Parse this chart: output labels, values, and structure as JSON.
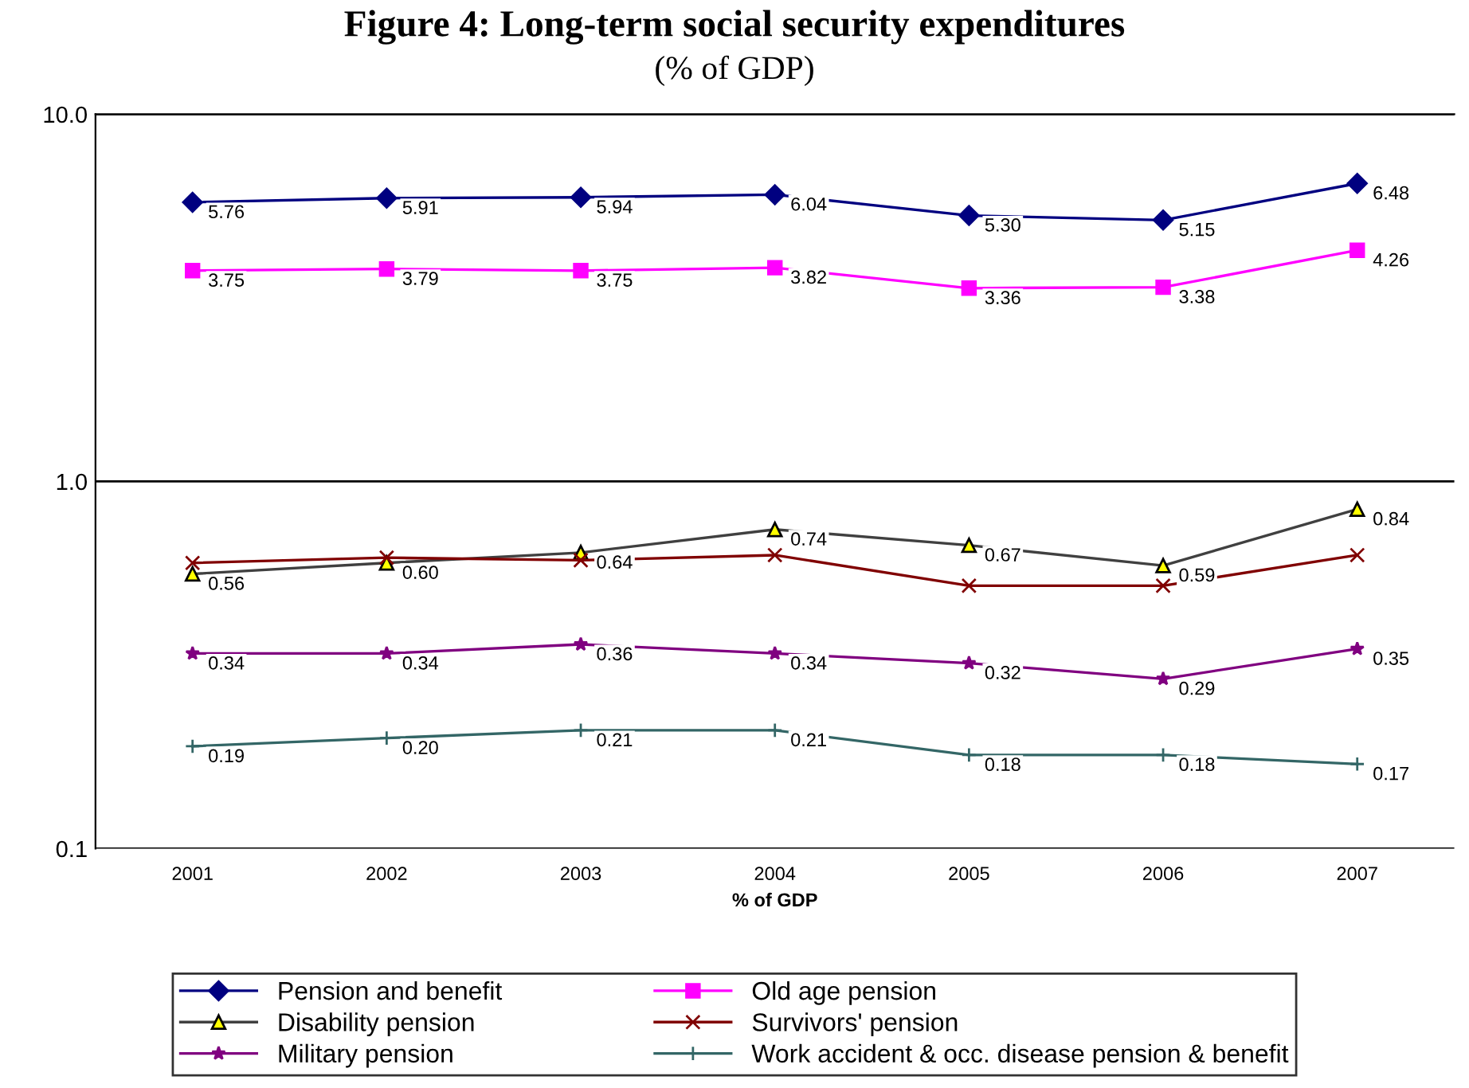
{
  "chart_data": {
    "type": "line",
    "title": "Figure 4: Long-term social security expenditures",
    "subtitle": "(% of GDP)",
    "xlabel": "% of GDP",
    "categories": [
      "2001",
      "2002",
      "2003",
      "2004",
      "2005",
      "2006",
      "2007"
    ],
    "log": "y",
    "ylim": [
      0.1,
      10
    ],
    "yticks": [
      {
        "value": 0.1,
        "label": "0.1"
      },
      {
        "value": 1,
        "label": "1.0"
      },
      {
        "value": 10,
        "label": "10.0"
      }
    ],
    "grid": "y",
    "legend": "bottom",
    "series": [
      {
        "name": "Pension and benefit",
        "color": "#000080",
        "marker": "diamond",
        "values": [
          5.76,
          5.91,
          5.94,
          6.04,
          5.3,
          5.15,
          6.48
        ],
        "value_labels": [
          "5.76",
          "5.91",
          "5.94",
          "6.04",
          "5.30",
          "5.15",
          "6.48"
        ]
      },
      {
        "name": "Old age pension",
        "color": "#ff00ff",
        "marker": "square",
        "values": [
          3.75,
          3.79,
          3.75,
          3.82,
          3.36,
          3.38,
          4.26
        ],
        "value_labels": [
          "3.75",
          "3.79",
          "3.75",
          "3.82",
          "3.36",
          "3.38",
          "4.26"
        ]
      },
      {
        "name": "Disability pension",
        "color": "#404040",
        "marker": "triangle",
        "values": [
          0.56,
          0.6,
          0.64,
          0.74,
          0.67,
          0.59,
          0.84
        ],
        "value_labels": [
          "0.56",
          "0.60",
          "0.64",
          "0.74",
          "0.67",
          "0.59",
          "0.84"
        ]
      },
      {
        "name": "Survivors' pension",
        "color": "#800000",
        "marker": "cross",
        "values": [
          0.6,
          0.62,
          0.61,
          0.63,
          0.52,
          0.52,
          0.63
        ]
      },
      {
        "name": "Military pension",
        "color": "#800080",
        "marker": "star",
        "values": [
          0.34,
          0.34,
          0.36,
          0.34,
          0.32,
          0.29,
          0.35
        ],
        "value_labels": [
          "0.34",
          "0.34",
          "0.36",
          "0.34",
          "0.32",
          "0.29",
          "0.35"
        ]
      },
      {
        "name": "Work accident & occ. disease pension & benefit",
        "color": "#336666",
        "marker": "plus",
        "values": [
          0.19,
          0.2,
          0.21,
          0.21,
          0.18,
          0.18,
          0.17
        ],
        "value_labels": [
          "0.19",
          "0.20",
          "0.21",
          "0.21",
          "0.18",
          "0.18",
          "0.17"
        ]
      }
    ]
  }
}
